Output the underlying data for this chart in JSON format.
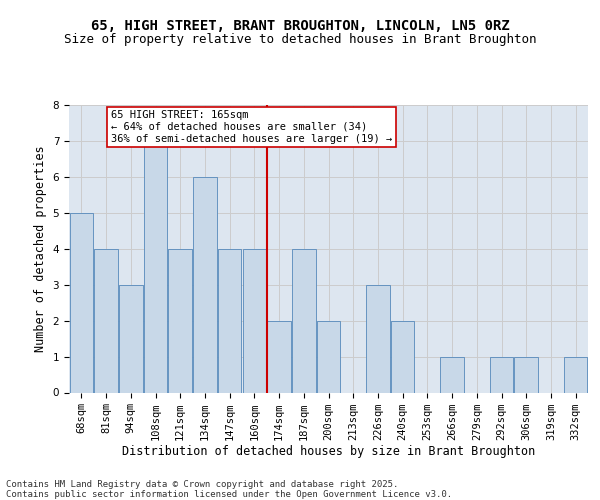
{
  "title1": "65, HIGH STREET, BRANT BROUGHTON, LINCOLN, LN5 0RZ",
  "title2": "Size of property relative to detached houses in Brant Broughton",
  "xlabel": "Distribution of detached houses by size in Brant Broughton",
  "ylabel": "Number of detached properties",
  "categories": [
    "68sqm",
    "81sqm",
    "94sqm",
    "108sqm",
    "121sqm",
    "134sqm",
    "147sqm",
    "160sqm",
    "174sqm",
    "187sqm",
    "200sqm",
    "213sqm",
    "226sqm",
    "240sqm",
    "253sqm",
    "266sqm",
    "279sqm",
    "292sqm",
    "306sqm",
    "319sqm",
    "332sqm"
  ],
  "values": [
    5,
    4,
    3,
    7,
    4,
    6,
    4,
    4,
    2,
    4,
    2,
    0,
    3,
    2,
    0,
    1,
    0,
    1,
    1,
    0,
    1
  ],
  "bar_color": "#c8d8e8",
  "bar_edge_color": "#5588bb",
  "subject_line_index": 7,
  "annotation_text": "65 HIGH STREET: 165sqm\n← 64% of detached houses are smaller (34)\n36% of semi-detached houses are larger (19) →",
  "annotation_box_color": "#ffffff",
  "annotation_border_color": "#cc0000",
  "vline_color": "#cc0000",
  "grid_color": "#cccccc",
  "bg_color": "#dde6f0",
  "footer_text": "Contains HM Land Registry data © Crown copyright and database right 2025.\nContains public sector information licensed under the Open Government Licence v3.0.",
  "ylim": [
    0,
    8
  ],
  "title1_fontsize": 10,
  "title2_fontsize": 9,
  "xlabel_fontsize": 8.5,
  "ylabel_fontsize": 8.5,
  "tick_fontsize": 7.5,
  "annotation_fontsize": 7.5,
  "footer_fontsize": 6.5
}
